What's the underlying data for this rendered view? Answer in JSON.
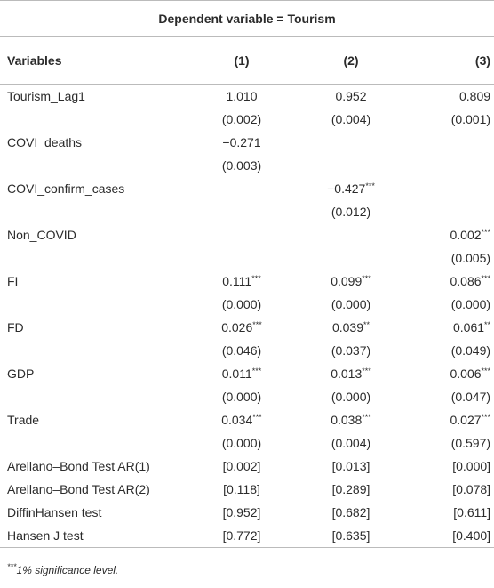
{
  "header": {
    "title": "Dependent variable = Tourism"
  },
  "table": {
    "columns": [
      "Variables",
      "(1)",
      "(2)",
      "(3)"
    ],
    "rows": [
      [
        "Tourism_Lag1",
        "1.010",
        "0.952",
        "0.809"
      ],
      [
        null,
        "(0.002)",
        "(0.004)",
        "(0.001)"
      ],
      [
        "COVI_deaths",
        "−0.271",
        null,
        null
      ],
      [
        null,
        "(0.003)",
        null,
        null
      ],
      [
        "COVI_confirm_cases",
        null,
        "−0.427***",
        null
      ],
      [
        null,
        null,
        "(0.012)",
        null
      ],
      [
        "Non_COVID",
        null,
        null,
        "0.002***"
      ],
      [
        null,
        null,
        null,
        "(0.005)"
      ],
      [
        "FI",
        "0.111***",
        "0.099***",
        "0.086***"
      ],
      [
        null,
        "(0.000)",
        "(0.000)",
        "(0.000)"
      ],
      [
        "FD",
        "0.026***",
        "0.039**",
        "0.061**"
      ],
      [
        null,
        "(0.046)",
        "(0.037)",
        "(0.049)"
      ],
      [
        "GDP",
        "0.011***",
        "0.013***",
        "0.006***"
      ],
      [
        null,
        "(0.000)",
        "(0.000)",
        "(0.047)"
      ],
      [
        "Trade",
        "0.034***",
        "0.038***",
        "0.027***"
      ],
      [
        null,
        "(0.000)",
        "(0.004)",
        "(0.597)"
      ],
      [
        "Arellano–Bond Test AR(1)",
        "[0.002]",
        "[0.013]",
        "[0.000]"
      ],
      [
        "Arellano–Bond Test AR(2)",
        "[0.118]",
        "[0.289]",
        "[0.078]"
      ],
      [
        "DiffinHansen test",
        "[0.952]",
        "[0.682]",
        "[0.611]"
      ],
      [
        "Hansen J test",
        "[0.772]",
        "[0.635]",
        "[0.400]"
      ]
    ]
  },
  "footnote": "***1% significance level."
}
